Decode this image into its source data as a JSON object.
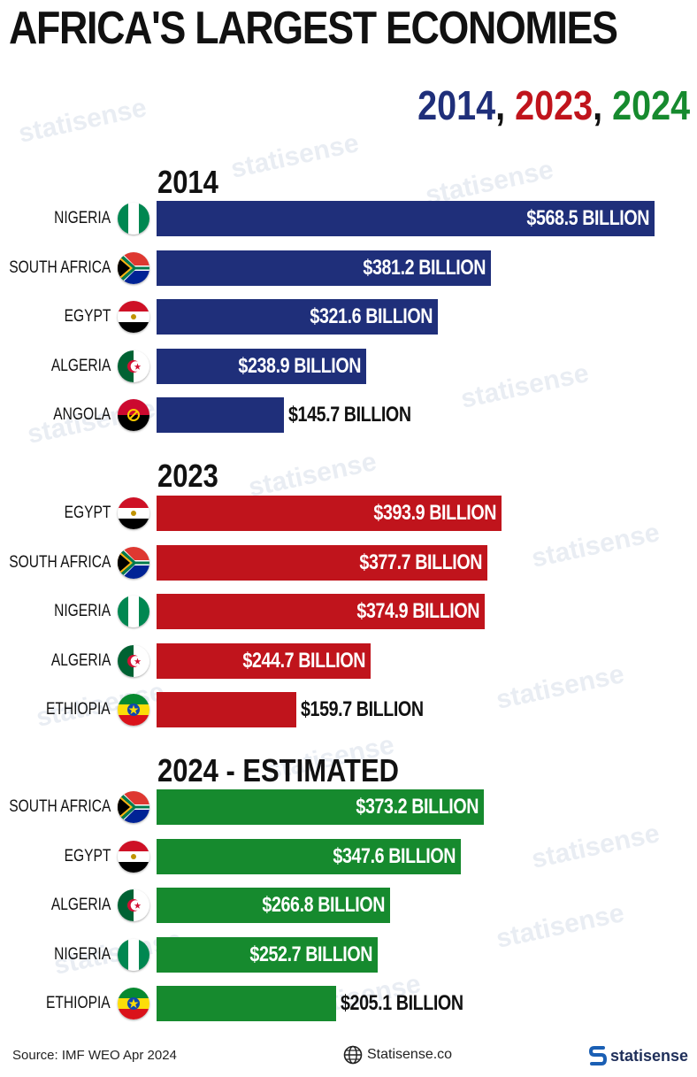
{
  "title": "AFRICA'S LARGEST ECONOMIES",
  "years_header": {
    "y1": "2014",
    "y2": "2023",
    "y3": "2024",
    "sep": ","
  },
  "colors": {
    "blue": "#1f2f7a",
    "red": "#c0141c",
    "green": "#168a2e"
  },
  "chart_data": [
    {
      "type": "bar",
      "title": "2014",
      "categories": [
        "NIGERIA",
        "SOUTH AFRICA",
        "EGYPT",
        "ALGERIA",
        "ANGOLA"
      ],
      "values": [
        568.5,
        381.2,
        321.6,
        238.9,
        145.7
      ],
      "labels": [
        "$568.5 BILLION",
        "$381.2 BILLION",
        "$321.6 BILLION",
        "$238.9 BILLION",
        "$145.7 BILLION"
      ],
      "flags": [
        "nigeria",
        "southafrica",
        "egypt",
        "algeria",
        "angola"
      ],
      "color": "#1f2f7a",
      "xlim": [
        0,
        568.5
      ]
    },
    {
      "type": "bar",
      "title": "2023",
      "categories": [
        "EGYPT",
        "SOUTH AFRICA",
        "NIGERIA",
        "ALGERIA",
        "ETHIOPIA"
      ],
      "values": [
        393.9,
        377.7,
        374.9,
        244.7,
        159.7
      ],
      "labels": [
        "$393.9 BILLION",
        "$377.7 BILLION",
        "$374.9 BILLION",
        "$244.7 BILLION",
        "$159.7 BILLION"
      ],
      "flags": [
        "egypt",
        "southafrica",
        "nigeria",
        "algeria",
        "ethiopia"
      ],
      "color": "#c0141c",
      "xlim": [
        0,
        568.5
      ]
    },
    {
      "type": "bar",
      "title": "2024 - ESTIMATED",
      "categories": [
        "SOUTH AFRICA",
        "EGYPT",
        "ALGERIA",
        "NIGERIA",
        "ETHIOPIA"
      ],
      "values": [
        373.2,
        347.6,
        266.8,
        252.7,
        205.1
      ],
      "labels": [
        "$373.2 BILLION",
        "$347.6 BILLION",
        "$266.8 BILLION",
        "$252.7 BILLION",
        "$205.1 BILLION"
      ],
      "flags": [
        "southafrica",
        "egypt",
        "algeria",
        "nigeria",
        "ethiopia"
      ],
      "color": "#168a2e",
      "xlim": [
        0,
        568.5
      ]
    }
  ],
  "footer": {
    "source": "Source: IMF WEO Apr 2024",
    "website": "Statisense.co",
    "brand": "statisense",
    "globe_icon": "globe-icon",
    "logo_icon": "statisense-logo-icon"
  },
  "watermark_text": "statisense"
}
